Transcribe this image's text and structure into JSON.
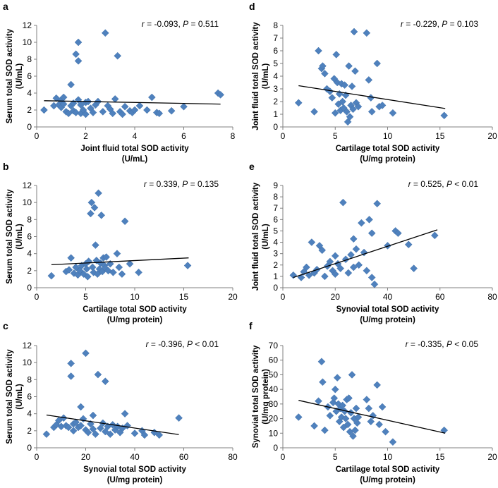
{
  "figure": {
    "marker_color": "#4f81bd",
    "line_color": "#000000"
  },
  "chart_data": [
    {
      "panel": "a",
      "type": "scatter",
      "xlabel": [
        "Joint fluid total SOD activity",
        "(U/mL)"
      ],
      "ylabel": [
        "Serum total SOD activity",
        "(U/mL)"
      ],
      "xlim": [
        0,
        8
      ],
      "xticks": [
        0,
        2,
        4,
        6,
        8
      ],
      "ylim": [
        0,
        12
      ],
      "yticks": [
        0,
        2,
        4,
        6,
        8,
        10,
        12
      ],
      "stats": {
        "r": "-0.093",
        "P": "0.511",
        "Pop": "="
      },
      "trend": [
        [
          0.3,
          3.1
        ],
        [
          7.5,
          2.7
        ]
      ],
      "points": [
        [
          0.3,
          2.0
        ],
        [
          0.7,
          2.5
        ],
        [
          0.8,
          3.4
        ],
        [
          0.9,
          2.6
        ],
        [
          1.0,
          3.2
        ],
        [
          1.0,
          2.3
        ],
        [
          1.1,
          3.5
        ],
        [
          1.1,
          2.7
        ],
        [
          1.2,
          1.8
        ],
        [
          1.3,
          1.6
        ],
        [
          1.4,
          2.5
        ],
        [
          1.4,
          5.0
        ],
        [
          1.5,
          1.9
        ],
        [
          1.5,
          2.8
        ],
        [
          1.6,
          1.7
        ],
        [
          1.6,
          8.6
        ],
        [
          1.7,
          10.0
        ],
        [
          1.7,
          7.8
        ],
        [
          1.7,
          3.2
        ],
        [
          1.8,
          2.6
        ],
        [
          1.8,
          1.6
        ],
        [
          1.9,
          2.0
        ],
        [
          2.0,
          1.5
        ],
        [
          2.0,
          2.9
        ],
        [
          2.1,
          3.0
        ],
        [
          2.2,
          2.2
        ],
        [
          2.3,
          1.7
        ],
        [
          2.4,
          2.6
        ],
        [
          2.5,
          3.0
        ],
        [
          2.7,
          1.8
        ],
        [
          2.8,
          11.1
        ],
        [
          2.9,
          2.5
        ],
        [
          3.0,
          2.1
        ],
        [
          3.1,
          1.6
        ],
        [
          3.2,
          3.3
        ],
        [
          3.3,
          8.4
        ],
        [
          3.4,
          1.8
        ],
        [
          3.5,
          1.5
        ],
        [
          3.6,
          2.4
        ],
        [
          3.8,
          1.9
        ],
        [
          3.9,
          1.7
        ],
        [
          4.0,
          2.0
        ],
        [
          4.2,
          2.5
        ],
        [
          4.5,
          2.0
        ],
        [
          4.7,
          3.5
        ],
        [
          4.9,
          1.7
        ],
        [
          5.0,
          1.6
        ],
        [
          5.5,
          1.9
        ],
        [
          6.0,
          2.4
        ],
        [
          7.4,
          4.0
        ],
        [
          7.5,
          3.8
        ]
      ]
    },
    {
      "panel": "b",
      "type": "scatter",
      "xlabel": [
        "Cartilage total SOD activity",
        "(U/mg protein)"
      ],
      "ylabel": [
        "Serum total SOD activity",
        "(U/mL)"
      ],
      "xlim": [
        0,
        20
      ],
      "xticks": [
        0,
        5,
        10,
        15,
        20
      ],
      "ylim": [
        0,
        12
      ],
      "yticks": [
        0,
        2,
        4,
        6,
        8,
        10,
        12
      ],
      "stats": {
        "r": "0.339",
        "P": "0.135",
        "Pop": "="
      },
      "trend": [
        [
          1.5,
          2.7
        ],
        [
          15.5,
          3.5
        ]
      ],
      "points": [
        [
          1.5,
          1.4
        ],
        [
          3.0,
          1.9
        ],
        [
          3.3,
          2.1
        ],
        [
          3.5,
          3.5
        ],
        [
          3.8,
          1.7
        ],
        [
          4.0,
          2.4
        ],
        [
          4.2,
          1.5
        ],
        [
          4.4,
          2.0
        ],
        [
          4.6,
          2.6
        ],
        [
          4.8,
          1.6
        ],
        [
          5.0,
          2.8
        ],
        [
          5.1,
          2.2
        ],
        [
          5.2,
          1.3
        ],
        [
          5.3,
          3.1
        ],
        [
          5.5,
          8.7
        ],
        [
          5.6,
          10.0
        ],
        [
          5.7,
          2.4
        ],
        [
          5.8,
          1.8
        ],
        [
          5.9,
          9.4
        ],
        [
          6.0,
          5.0
        ],
        [
          6.1,
          3.2
        ],
        [
          6.2,
          1.6
        ],
        [
          6.3,
          11.1
        ],
        [
          6.4,
          2.2
        ],
        [
          6.5,
          2.9
        ],
        [
          6.6,
          8.5
        ],
        [
          6.7,
          1.9
        ],
        [
          6.8,
          3.5
        ],
        [
          6.9,
          2.6
        ],
        [
          7.0,
          2.3
        ],
        [
          7.1,
          3.6
        ],
        [
          7.3,
          2.0
        ],
        [
          7.5,
          2.8
        ],
        [
          7.8,
          1.8
        ],
        [
          8.2,
          4.0
        ],
        [
          8.4,
          2.4
        ],
        [
          8.7,
          1.6
        ],
        [
          9.0,
          7.8
        ],
        [
          9.5,
          2.8
        ],
        [
          10.4,
          1.8
        ],
        [
          15.4,
          2.6
        ]
      ]
    },
    {
      "panel": "c",
      "type": "scatter",
      "xlabel": [
        "Synovial total SOD activity",
        "(U/mg protein)"
      ],
      "ylabel": [
        "Serum total SOD activity",
        "(U/mL)"
      ],
      "xlim": [
        0,
        80
      ],
      "xticks": [
        0,
        20,
        40,
        60,
        80
      ],
      "ylim": [
        0,
        12
      ],
      "yticks": [
        0,
        2,
        4,
        6,
        8,
        10,
        12
      ],
      "stats": {
        "r": "-0.396",
        "P": "0.01",
        "Pop": "<"
      },
      "trend": [
        [
          4,
          3.85
        ],
        [
          58,
          1.55
        ]
      ],
      "points": [
        [
          4,
          1.6
        ],
        [
          7,
          2.4
        ],
        [
          8,
          2.7
        ],
        [
          9,
          3.2
        ],
        [
          10,
          2.5
        ],
        [
          11,
          3.5
        ],
        [
          12,
          2.6
        ],
        [
          13,
          2.4
        ],
        [
          14,
          9.9
        ],
        [
          14,
          8.4
        ],
        [
          15,
          2.8
        ],
        [
          15,
          2.0
        ],
        [
          16,
          3.0
        ],
        [
          17,
          2.4
        ],
        [
          18,
          4.8
        ],
        [
          18,
          2.6
        ],
        [
          19,
          3.4
        ],
        [
          20,
          11.1
        ],
        [
          20,
          2.1
        ],
        [
          21,
          1.8
        ],
        [
          22,
          2.8
        ],
        [
          23,
          3.8
        ],
        [
          23,
          2.2
        ],
        [
          24,
          1.6
        ],
        [
          25,
          8.6
        ],
        [
          26,
          2.3
        ],
        [
          27,
          2.9
        ],
        [
          28,
          7.8
        ],
        [
          28,
          1.9
        ],
        [
          29,
          2.5
        ],
        [
          30,
          1.6
        ],
        [
          31,
          2.7
        ],
        [
          32,
          2.1
        ],
        [
          33,
          2.5
        ],
        [
          34,
          1.8
        ],
        [
          35,
          2.3
        ],
        [
          36,
          4.0
        ],
        [
          37,
          2.6
        ],
        [
          40,
          1.7
        ],
        [
          43,
          2.0
        ],
        [
          44,
          1.5
        ],
        [
          48,
          1.8
        ],
        [
          50,
          1.5
        ],
        [
          58,
          3.5
        ]
      ]
    },
    {
      "panel": "d",
      "type": "scatter",
      "xlabel": [
        "Cartilage total SOD activity",
        "(U/mg protein)"
      ],
      "ylabel": [
        "Joint fluid total SOD activity",
        "(U/mL)"
      ],
      "xlim": [
        0,
        20
      ],
      "xticks": [
        0,
        5,
        10,
        15,
        20
      ],
      "ylim": [
        0,
        8
      ],
      "yticks": [
        0,
        1,
        2,
        3,
        4,
        5,
        6,
        7,
        8
      ],
      "stats": {
        "r": "-0.229",
        "P": "0.103",
        "Pop": "="
      },
      "trend": [
        [
          1.5,
          3.25
        ],
        [
          15.5,
          1.45
        ]
      ],
      "points": [
        [
          1.5,
          1.9
        ],
        [
          3.0,
          1.2
        ],
        [
          3.4,
          6.0
        ],
        [
          3.7,
          4.6
        ],
        [
          3.8,
          4.8
        ],
        [
          4.0,
          4.2
        ],
        [
          4.2,
          3.0
        ],
        [
          4.5,
          2.8
        ],
        [
          4.7,
          2.3
        ],
        [
          4.9,
          3.8
        ],
        [
          5.0,
          1.1
        ],
        [
          5.1,
          5.7
        ],
        [
          5.2,
          3.5
        ],
        [
          5.3,
          1.8
        ],
        [
          5.4,
          2.6
        ],
        [
          5.5,
          1.3
        ],
        [
          5.6,
          3.4
        ],
        [
          5.7,
          2.0
        ],
        [
          5.8,
          1.5
        ],
        [
          5.9,
          3.3
        ],
        [
          6.0,
          2.5
        ],
        [
          6.1,
          1.2
        ],
        [
          6.2,
          0.4
        ],
        [
          6.3,
          4.8
        ],
        [
          6.4,
          0.8
        ],
        [
          6.5,
          1.7
        ],
        [
          6.6,
          3.2
        ],
        [
          6.7,
          1.4
        ],
        [
          6.8,
          7.5
        ],
        [
          6.9,
          4.4
        ],
        [
          7.0,
          1.9
        ],
        [
          7.2,
          1.6
        ],
        [
          8.0,
          7.4
        ],
        [
          8.2,
          3.7
        ],
        [
          8.4,
          2.3
        ],
        [
          8.5,
          1.2
        ],
        [
          9.0,
          5.0
        ],
        [
          9.2,
          1.6
        ],
        [
          9.5,
          1.7
        ],
        [
          10.5,
          1.1
        ],
        [
          15.4,
          0.9
        ]
      ]
    },
    {
      "panel": "e",
      "type": "scatter",
      "xlabel": [
        "Synovial total SOD activity",
        "(U/mg protein)"
      ],
      "ylabel": [
        "Joint fluid total SOD activity",
        "(U/mL)"
      ],
      "xlim": [
        0,
        80
      ],
      "xticks": [
        0,
        20,
        40,
        60,
        80
      ],
      "ylim": [
        0,
        9
      ],
      "yticks": [
        0,
        1,
        2,
        3,
        4,
        5,
        6,
        7,
        8,
        9
      ],
      "stats": {
        "r": "0.525",
        "P": "0.01",
        "Pop": "<"
      },
      "trend": [
        [
          4,
          0.9
        ],
        [
          59,
          5.1
        ]
      ],
      "points": [
        [
          4,
          1.1
        ],
        [
          7,
          0.9
        ],
        [
          8,
          1.4
        ],
        [
          9,
          1.8
        ],
        [
          10,
          1.1
        ],
        [
          11,
          4.0
        ],
        [
          12,
          1.3
        ],
        [
          13,
          1.6
        ],
        [
          14,
          3.7
        ],
        [
          15,
          3.3
        ],
        [
          16,
          1.0
        ],
        [
          17,
          1.9
        ],
        [
          18,
          2.3
        ],
        [
          19,
          1.5
        ],
        [
          20,
          2.8
        ],
        [
          20,
          1.2
        ],
        [
          21,
          2.1
        ],
        [
          22,
          1.7
        ],
        [
          23,
          7.5
        ],
        [
          24,
          2.5
        ],
        [
          25,
          1.3
        ],
        [
          26,
          2.9
        ],
        [
          27,
          4.3
        ],
        [
          27,
          1.8
        ],
        [
          28,
          3.4
        ],
        [
          29,
          2.0
        ],
        [
          30,
          5.7
        ],
        [
          31,
          3.1
        ],
        [
          32,
          1.5
        ],
        [
          33,
          6.0
        ],
        [
          34,
          4.8
        ],
        [
          34,
          0.9
        ],
        [
          35,
          0.3
        ],
        [
          36,
          7.4
        ],
        [
          40,
          3.7
        ],
        [
          43,
          5.0
        ],
        [
          44,
          4.8
        ],
        [
          48,
          3.8
        ],
        [
          50,
          1.7
        ],
        [
          58,
          4.6
        ]
      ]
    },
    {
      "panel": "f",
      "type": "scatter",
      "xlabel": [
        "Cartilage total SOD activity",
        "(U/mg protein)"
      ],
      "ylabel": [
        "Synovial total SOD activity",
        "(U/mg protein)"
      ],
      "xlim": [
        0,
        20
      ],
      "xticks": [
        0,
        5,
        10,
        15,
        20
      ],
      "ylim": [
        0,
        70
      ],
      "yticks": [
        0,
        10,
        20,
        30,
        40,
        50,
        60,
        70
      ],
      "stats": {
        "r": "-0.335",
        "P": "0.05",
        "Pop": "<"
      },
      "trend": [
        [
          1.5,
          32.5
        ],
        [
          15.5,
          10.0
        ]
      ],
      "points": [
        [
          1.5,
          21
        ],
        [
          3.0,
          15
        ],
        [
          3.4,
          32
        ],
        [
          3.7,
          59
        ],
        [
          3.8,
          45
        ],
        [
          4.0,
          12
        ],
        [
          4.3,
          28
        ],
        [
          4.5,
          22
        ],
        [
          4.8,
          31
        ],
        [
          4.9,
          34
        ],
        [
          5.0,
          40
        ],
        [
          5.1,
          25
        ],
        [
          5.2,
          48
        ],
        [
          5.3,
          30
        ],
        [
          5.4,
          18
        ],
        [
          5.5,
          27
        ],
        [
          5.6,
          21
        ],
        [
          5.7,
          29
        ],
        [
          5.8,
          14
        ],
        [
          5.9,
          25
        ],
        [
          6.0,
          20
        ],
        [
          6.1,
          33
        ],
        [
          6.2,
          16
        ],
        [
          6.3,
          34
        ],
        [
          6.4,
          11
        ],
        [
          6.5,
          24
        ],
        [
          6.6,
          50
        ],
        [
          6.7,
          8
        ],
        [
          6.8,
          20
        ],
        [
          6.9,
          12
        ],
        [
          7.0,
          27
        ],
        [
          7.1,
          17
        ],
        [
          7.2,
          21
        ],
        [
          8.0,
          33
        ],
        [
          8.2,
          27
        ],
        [
          8.4,
          18
        ],
        [
          8.6,
          22
        ],
        [
          9.0,
          43
        ],
        [
          9.2,
          16
        ],
        [
          9.5,
          28
        ],
        [
          9.8,
          11
        ],
        [
          10.5,
          4
        ],
        [
          15.4,
          12
        ]
      ]
    }
  ]
}
